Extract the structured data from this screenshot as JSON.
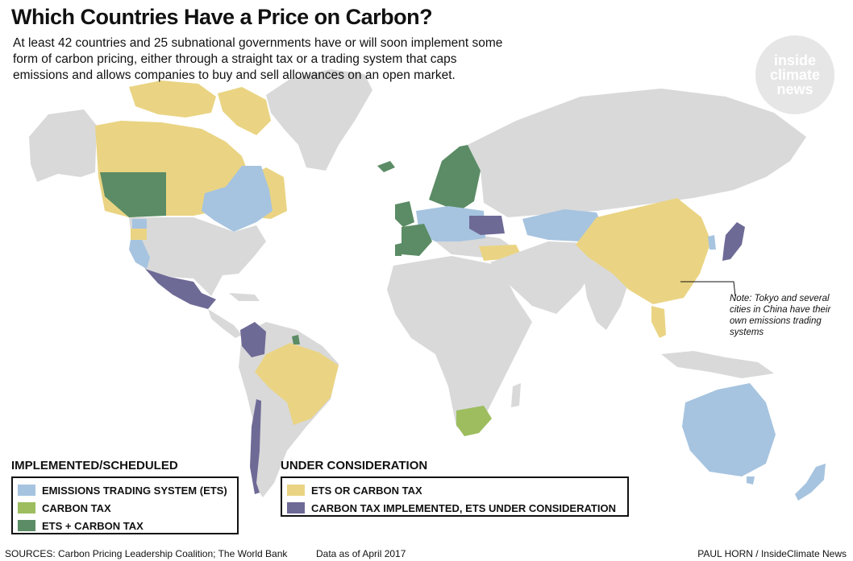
{
  "title": "Which Countries Have a Price on Carbon?",
  "subtitle": "At least 42 countries and 25 subnational governments have or will soon implement some form of carbon pricing, either through a straight tax or a trading system that caps emissions and allows companies to buy and sell allowances on an open market.",
  "logo": {
    "lines": [
      "inside",
      "climate",
      "news"
    ]
  },
  "note": "Note: Tokyo and several cities in China have their own emissions trading systems",
  "colors": {
    "ocean": "#ffffff",
    "land": "#d9d9d9",
    "ets": "#a6c4e0",
    "carbon_tax": "#9dbd5f",
    "ets_carbon_tax": "#5b8c65",
    "ets_or_tax": "#ead483",
    "tax_ets_consideration": "#6e6a96"
  },
  "legend": {
    "implemented": {
      "heading": "IMPLEMENTED/SCHEDULED",
      "items": [
        {
          "label": "EMISSIONS TRADING SYSTEM (ETS)",
          "color": "#a6c4e0"
        },
        {
          "label": "CARBON TAX",
          "color": "#9dbd5f"
        },
        {
          "label": "ETS + CARBON TAX",
          "color": "#5b8c65"
        }
      ]
    },
    "consideration": {
      "heading": "UNDER CONSIDERATION",
      "items": [
        {
          "label": "ETS OR CARBON TAX",
          "color": "#ead483"
        },
        {
          "label": "CARBON TAX IMPLEMENTED, ETS UNDER CONSIDERATION",
          "color": "#6e6a96"
        }
      ]
    }
  },
  "footer": {
    "sources": "SOURCES: Carbon Pricing Leadership Coalition; The World Bank",
    "date": "Data as of April  2017",
    "credit": "PAUL HORN / InsideClimate News"
  }
}
